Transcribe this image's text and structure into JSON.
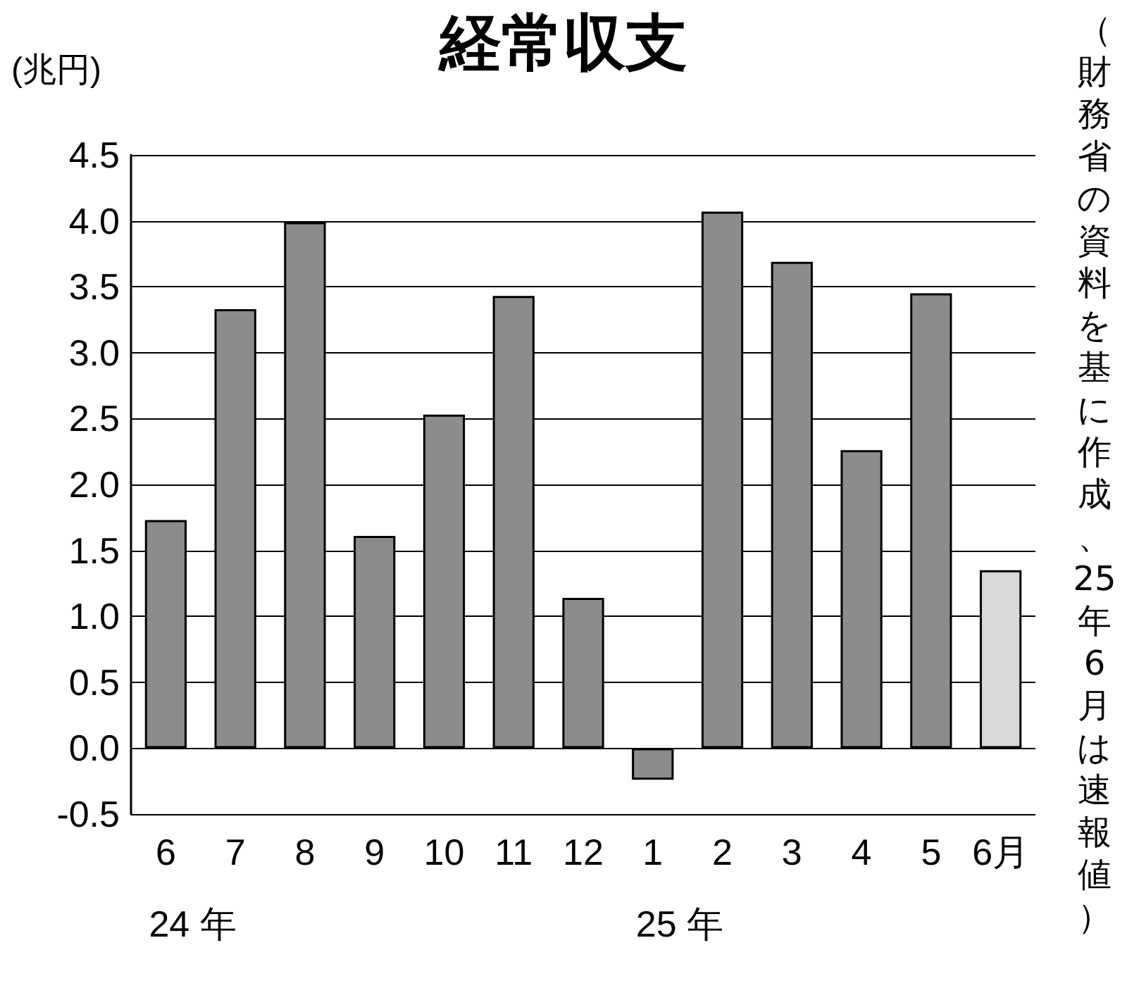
{
  "chart_data": {
    "type": "bar",
    "title": "経常収支",
    "ylabel": "(兆円)",
    "categories": [
      "6",
      "7",
      "8",
      "9",
      "10",
      "11",
      "12",
      "1",
      "2",
      "3",
      "4",
      "5",
      "6月"
    ],
    "values": [
      1.73,
      3.33,
      3.99,
      1.61,
      2.53,
      3.43,
      1.14,
      -0.24,
      4.07,
      3.69,
      2.26,
      3.45,
      1.35
    ],
    "colors": [
      "#8c8c8c",
      "#8c8c8c",
      "#8c8c8c",
      "#8c8c8c",
      "#8c8c8c",
      "#8c8c8c",
      "#8c8c8c",
      "#8c8c8c",
      "#8c8c8c",
      "#8c8c8c",
      "#8c8c8c",
      "#8c8c8c",
      "#d9d9d9"
    ],
    "ylim": [
      -0.5,
      4.5
    ],
    "yticks": [
      -0.5,
      {
        "value": 0,
        "label": "0.0"
      },
      0.5,
      {
        "value": 1,
        "label": "1.0"
      },
      1.5,
      {
        "value": 2,
        "label": "2.0"
      },
      2.5,
      {
        "value": 3,
        "label": "3.0"
      },
      3.5,
      {
        "value": 4,
        "label": "4.0"
      },
      4.5
    ],
    "grid": "y",
    "annotations": [
      "24 年",
      "25 年",
      "（財務省の資料を基に作成、25年6月は速報値）"
    ]
  }
}
